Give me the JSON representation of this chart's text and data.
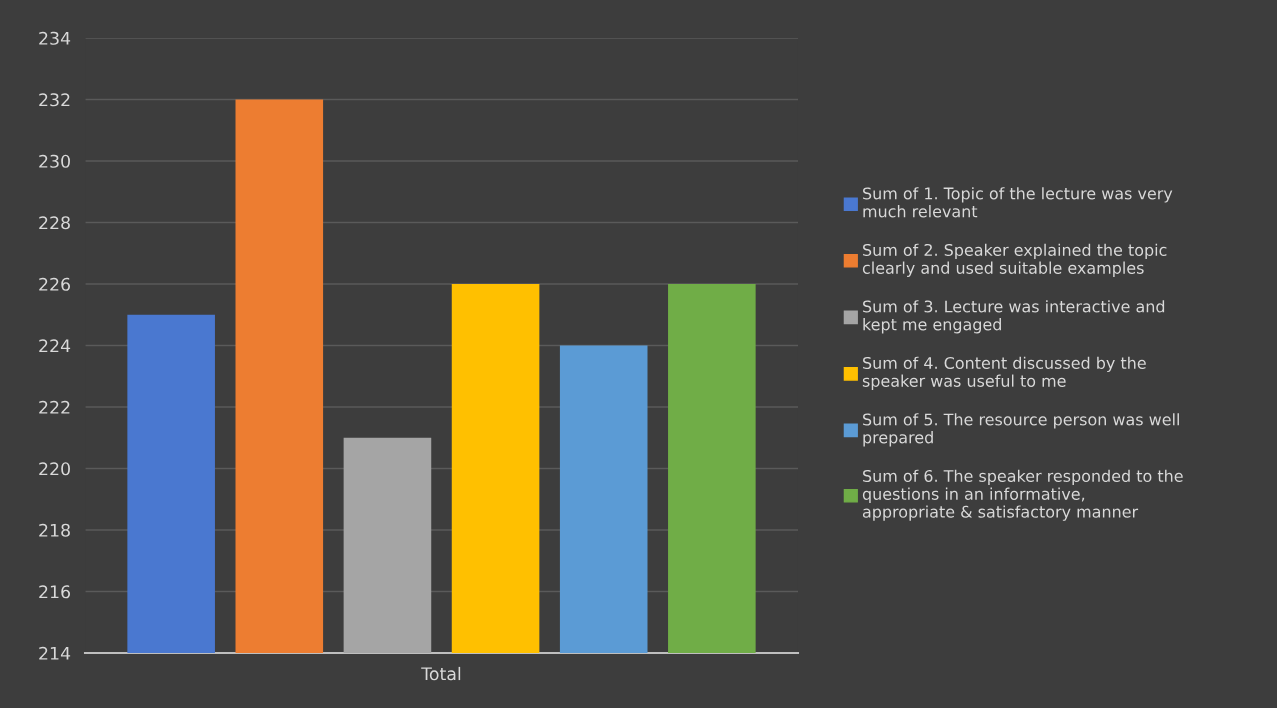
{
  "chart_data": {
    "type": "bar",
    "categories": [
      "Total"
    ],
    "series": [
      {
        "name": "Sum of 1. Topic of the lecture was very much relevant",
        "color": "#4a78d0",
        "values": [
          225
        ]
      },
      {
        "name": "Sum of 2. Speaker explained the topic clearly and used suitable examples",
        "color": "#ed7d31",
        "values": [
          232
        ]
      },
      {
        "name": "Sum of 3. Lecture was interactive and kept me engaged",
        "color": "#a5a5a5",
        "values": [
          221
        ]
      },
      {
        "name": "Sum of 4. Content discussed by the speaker was useful to me",
        "color": "#ffc000",
        "values": [
          226
        ]
      },
      {
        "name": "Sum of 5. The resource person was well prepared",
        "color": "#5b9bd5",
        "values": [
          224
        ]
      },
      {
        "name": "Sum of 6. The speaker responded to the questions in an informative, appropriate & satisfactory manner",
        "color": "#70ad47",
        "values": [
          226
        ]
      }
    ],
    "ylim": [
      214,
      234
    ],
    "yticks": [
      214,
      216,
      218,
      220,
      222,
      224,
      226,
      228,
      230,
      232,
      234
    ],
    "grid": "y",
    "legend": "right"
  }
}
